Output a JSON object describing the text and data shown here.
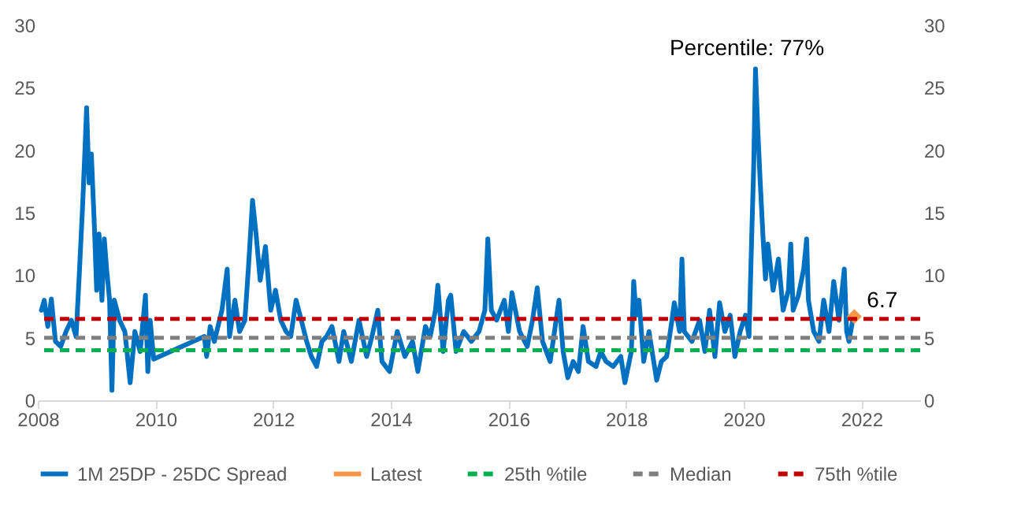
{
  "chart_data": {
    "type": "line",
    "xlim": [
      2008,
      2023
    ],
    "xticks": [
      2008,
      2010,
      2012,
      2014,
      2016,
      2018,
      2020,
      2022
    ],
    "ylim": [
      0,
      30
    ],
    "yticks": [
      0,
      5,
      10,
      15,
      20,
      25,
      30
    ],
    "y2lim": [
      0,
      30
    ],
    "y2ticks": [
      0,
      5,
      10,
      15,
      20,
      25,
      30
    ],
    "grid": false,
    "legend": "bottom",
    "annotations": [
      "Percentile: 77%"
    ],
    "series": [
      {
        "name": "1M 25DP - 25DC Spread",
        "color": "#0070c0",
        "line_style": "solid",
        "x": [
          2008.06,
          2008.11,
          2008.17,
          2008.23,
          2008.3,
          2008.39,
          2008.48,
          2008.57,
          2008.65,
          2008.7,
          2008.76,
          2008.8,
          2008.83,
          2008.87,
          2008.91,
          2008.96,
          2009.0,
          2009.04,
          2009.09,
          2009.13,
          2009.17,
          2009.22,
          2009.26,
          2009.3,
          2009.39,
          2009.48,
          2009.57,
          2009.65,
          2009.74,
          2009.83,
          2009.87,
          2009.91,
          2009.97,
          2010.83,
          2010.87,
          2010.93,
          2011.0,
          2011.13,
          2011.22,
          2011.26,
          2011.35,
          2011.43,
          2011.52,
          2011.59,
          2011.65,
          2011.71,
          2011.78,
          2011.87,
          2011.96,
          2012.04,
          2012.13,
          2012.22,
          2012.3,
          2012.39,
          2012.48,
          2012.57,
          2012.65,
          2012.74,
          2012.83,
          2012.91,
          2013.0,
          2013.12,
          2013.2,
          2013.33,
          2013.46,
          2013.59,
          2013.68,
          2013.78,
          2013.85,
          2013.98,
          2014.11,
          2014.24,
          2014.37,
          2014.46,
          2014.59,
          2014.67,
          2014.76,
          2014.8,
          2014.89,
          2014.98,
          2015.02,
          2015.11,
          2015.24,
          2015.37,
          2015.5,
          2015.6,
          2015.65,
          2015.71,
          2015.8,
          2015.93,
          2016.0,
          2016.06,
          2016.19,
          2016.32,
          2016.41,
          2016.49,
          2016.58,
          2016.71,
          2016.86,
          2016.93,
          2017.01,
          2017.1,
          2017.19,
          2017.27,
          2017.36,
          2017.49,
          2017.57,
          2017.66,
          2017.78,
          2017.91,
          2017.98,
          2018.09,
          2018.13,
          2018.17,
          2018.22,
          2018.3,
          2018.39,
          2018.52,
          2018.6,
          2018.69,
          2018.78,
          2018.82,
          2018.91,
          2018.95,
          2018.99,
          2019.12,
          2019.25,
          2019.34,
          2019.42,
          2019.51,
          2019.59,
          2019.68,
          2019.77,
          2019.85,
          2019.94,
          2020.03,
          2020.09,
          2020.14,
          2020.17,
          2020.2,
          2020.24,
          2020.28,
          2020.33,
          2020.37,
          2020.41,
          2020.5,
          2020.59,
          2020.67,
          2020.76,
          2020.8,
          2020.84,
          2020.93,
          2021.02,
          2021.07,
          2021.1,
          2021.19,
          2021.28,
          2021.36,
          2021.45,
          2021.53,
          2021.62,
          2021.71,
          2021.75,
          2021.79,
          2021.86
        ],
        "values": [
          7.2,
          8.0,
          5.9,
          8.1,
          4.7,
          4.3,
          5.5,
          6.4,
          5.1,
          9.6,
          15.4,
          19.9,
          23.4,
          17.4,
          19.7,
          14.1,
          8.8,
          13.3,
          8.0,
          12.9,
          10.5,
          8.0,
          0.8,
          8.0,
          6.4,
          5.5,
          1.4,
          5.5,
          3.9,
          8.4,
          2.3,
          6.4,
          3.3,
          5.1,
          3.5,
          5.9,
          4.7,
          7.2,
          10.5,
          5.1,
          8.0,
          5.5,
          6.4,
          11.3,
          16.0,
          13.3,
          9.6,
          12.3,
          7.2,
          8.8,
          6.4,
          5.5,
          5.1,
          8.0,
          6.4,
          4.7,
          3.5,
          2.7,
          4.7,
          5.1,
          5.9,
          3.1,
          5.5,
          3.1,
          6.4,
          3.5,
          5.1,
          7.2,
          3.1,
          2.3,
          5.5,
          3.5,
          4.7,
          2.3,
          5.9,
          5.1,
          7.2,
          9.2,
          3.9,
          8.0,
          8.4,
          3.9,
          5.5,
          4.7,
          5.5,
          7.2,
          12.9,
          7.2,
          6.4,
          8.0,
          5.5,
          8.6,
          5.5,
          4.3,
          6.4,
          9.0,
          4.7,
          3.1,
          8.0,
          3.9,
          1.8,
          3.1,
          2.3,
          5.9,
          3.1,
          2.7,
          3.9,
          3.1,
          2.7,
          3.5,
          1.4,
          3.9,
          9.5,
          6.8,
          8.0,
          3.1,
          5.5,
          1.6,
          3.1,
          3.5,
          6.4,
          7.8,
          5.5,
          11.3,
          5.5,
          4.7,
          6.4,
          3.9,
          7.2,
          3.5,
          7.8,
          5.5,
          6.8,
          3.5,
          5.5,
          6.8,
          5.1,
          13.8,
          18.7,
          26.5,
          21.6,
          17.5,
          12.9,
          9.7,
          12.5,
          8.8,
          11.3,
          7.2,
          8.8,
          12.5,
          7.2,
          8.4,
          10.5,
          12.9,
          8.0,
          5.5,
          4.7,
          8.0,
          5.5,
          9.5,
          6.4,
          10.5,
          5.5,
          4.7,
          6.6
        ]
      },
      {
        "name": "Latest",
        "type": "scatter",
        "marker": "diamond",
        "color": "#f79646",
        "x": [
          2021.88
        ],
        "values": [
          6.7
        ],
        "data_labels": true
      }
    ],
    "ref_lines": [
      {
        "axis": "y",
        "value": 4,
        "label": "25th %tile",
        "color": "#00b050",
        "line_style": "dashed"
      },
      {
        "axis": "y",
        "value": 5,
        "label": "Median",
        "color": "#7f7f7f",
        "line_style": "dashed"
      },
      {
        "axis": "y",
        "value": 6.5,
        "label": "75th %tile",
        "color": "#c00000",
        "line_style": "dashed"
      }
    ]
  }
}
